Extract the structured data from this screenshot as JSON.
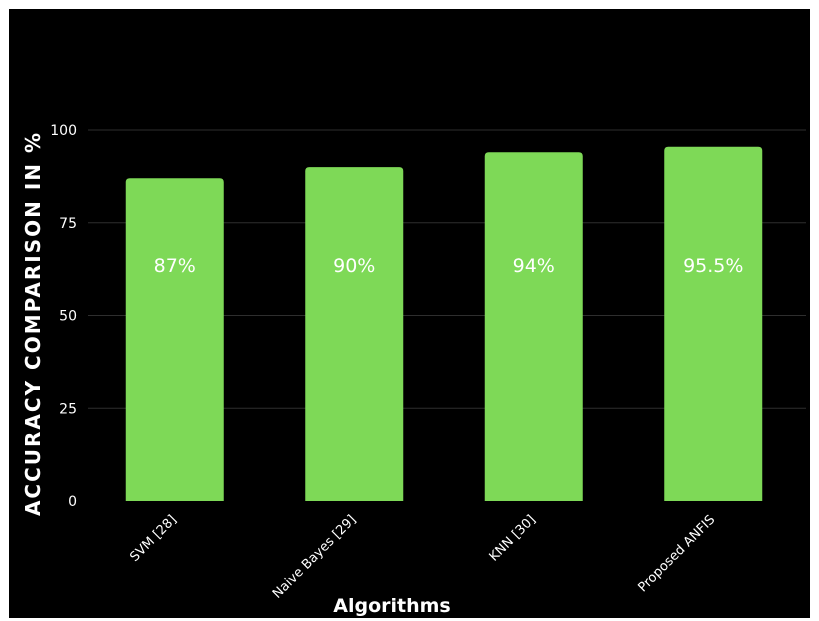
{
  "chart_data": {
    "type": "bar",
    "title": "",
    "xlabel": "Algorithms",
    "ylabel": "ACCURACY COMPARISON IN %",
    "categories": [
      "SVM [28]",
      "Naive Bayes [29]",
      "KNN [30]",
      "Proposed ANFIS"
    ],
    "series": [
      {
        "values": [
          87,
          90,
          94,
          95.5
        ],
        "data_labels": [
          "87%",
          "90%",
          "94%",
          "95.5%"
        ]
      }
    ],
    "y_ticks": [
      "0",
      "25",
      "50",
      "75",
      "100"
    ],
    "ylim": [
      0,
      100
    ],
    "grid": true,
    "legend": "none",
    "colors": {
      "background": "#000000",
      "bar": "#7ed957",
      "gridline": "#2e2e2e",
      "text": "#ffffff"
    }
  }
}
